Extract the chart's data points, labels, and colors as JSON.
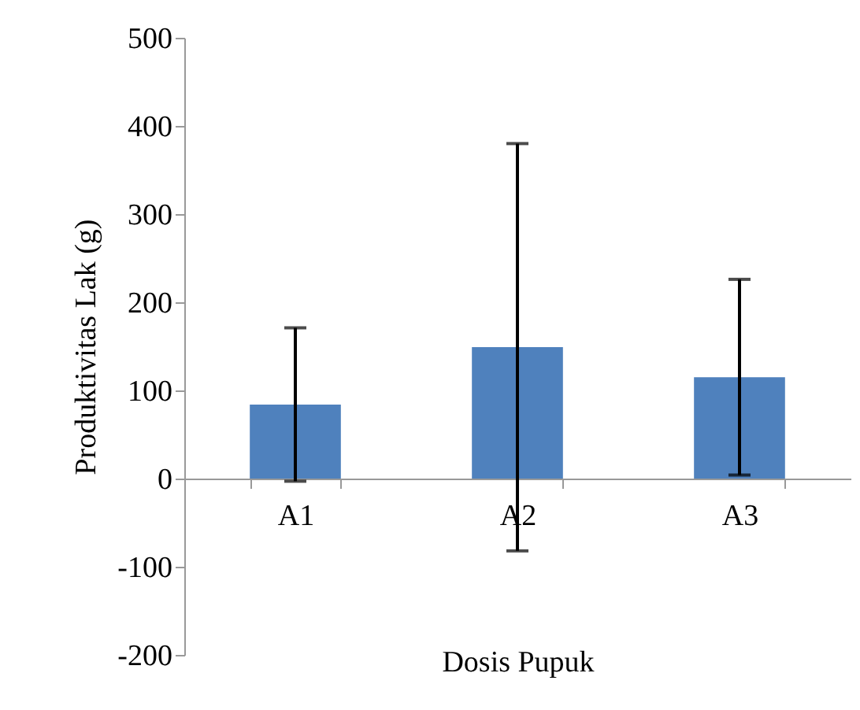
{
  "chart_data": {
    "type": "bar",
    "xlabel": "Dosis Pupuk",
    "ylabel": "Produktivitas Lak (g)",
    "categories": [
      "A1",
      "A2",
      "A3"
    ],
    "values": [
      84,
      149,
      115
    ],
    "errors": [
      87,
      231,
      111
    ],
    "color": "#4f81bd",
    "ylim": [
      -200,
      500
    ],
    "yticks": [
      -200,
      -100,
      0,
      100,
      200,
      300,
      400,
      500
    ],
    "grid": false
  }
}
